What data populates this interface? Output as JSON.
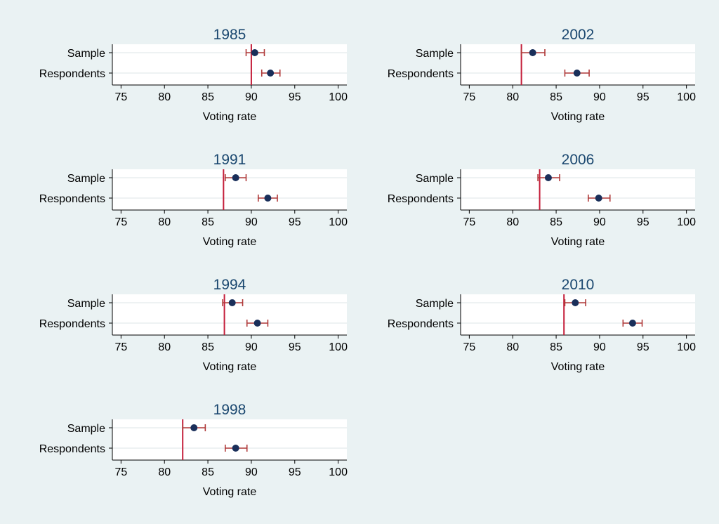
{
  "colors": {
    "background": "#eaf2f3",
    "plot_background": "#ffffff",
    "title_color": "#1a476f",
    "point_color": "#1a2f5a",
    "ci_color": "#b03a3a",
    "reference_line_color": "#c41e3a"
  },
  "chart_data": [
    {
      "type": "scatter",
      "title": "1985",
      "xlabel": "Voting rate",
      "categories": [
        "Sample",
        "Respondents"
      ],
      "xlim": [
        74,
        101
      ],
      "xticks": [
        75,
        80,
        85,
        90,
        95,
        100
      ],
      "reference_line": 90,
      "points": [
        {
          "category": "Sample",
          "value": 90.4,
          "ci": [
            89.4,
            91.5
          ]
        },
        {
          "category": "Respondents",
          "value": 92.2,
          "ci": [
            91.2,
            93.3
          ]
        }
      ]
    },
    {
      "type": "scatter",
      "title": "2002",
      "xlabel": "Voting rate",
      "categories": [
        "Sample",
        "Respondents"
      ],
      "xlim": [
        74,
        101
      ],
      "xticks": [
        75,
        80,
        85,
        90,
        95,
        100
      ],
      "reference_line": 81,
      "points": [
        {
          "category": "Sample",
          "value": 82.3,
          "ci": [
            81.0,
            83.7
          ]
        },
        {
          "category": "Respondents",
          "value": 87.4,
          "ci": [
            86.0,
            88.8
          ]
        }
      ]
    },
    {
      "type": "scatter",
      "title": "1991",
      "xlabel": "Voting rate",
      "categories": [
        "Sample",
        "Respondents"
      ],
      "xlim": [
        74,
        101
      ],
      "xticks": [
        75,
        80,
        85,
        90,
        95,
        100
      ],
      "reference_line": 86.8,
      "points": [
        {
          "category": "Sample",
          "value": 88.2,
          "ci": [
            87.0,
            89.4
          ]
        },
        {
          "category": "Respondents",
          "value": 91.9,
          "ci": [
            90.8,
            93.0
          ]
        }
      ]
    },
    {
      "type": "scatter",
      "title": "2006",
      "xlabel": "Voting rate",
      "categories": [
        "Sample",
        "Respondents"
      ],
      "xlim": [
        74,
        101
      ],
      "xticks": [
        75,
        80,
        85,
        90,
        95,
        100
      ],
      "reference_line": 83.1,
      "points": [
        {
          "category": "Sample",
          "value": 84.1,
          "ci": [
            82.9,
            85.4
          ]
        },
        {
          "category": "Respondents",
          "value": 89.9,
          "ci": [
            88.7,
            91.2
          ]
        }
      ]
    },
    {
      "type": "scatter",
      "title": "1994",
      "xlabel": "Voting rate",
      "categories": [
        "Sample",
        "Respondents"
      ],
      "xlim": [
        74,
        101
      ],
      "xticks": [
        75,
        80,
        85,
        90,
        95,
        100
      ],
      "reference_line": 86.9,
      "points": [
        {
          "category": "Sample",
          "value": 87.8,
          "ci": [
            86.7,
            89.0
          ]
        },
        {
          "category": "Respondents",
          "value": 90.7,
          "ci": [
            89.5,
            91.9
          ]
        }
      ]
    },
    {
      "type": "scatter",
      "title": "2010",
      "xlabel": "Voting rate",
      "categories": [
        "Sample",
        "Respondents"
      ],
      "xlim": [
        74,
        101
      ],
      "xticks": [
        75,
        80,
        85,
        90,
        95,
        100
      ],
      "reference_line": 85.9,
      "points": [
        {
          "category": "Sample",
          "value": 87.2,
          "ci": [
            86.0,
            88.4
          ]
        },
        {
          "category": "Respondents",
          "value": 93.8,
          "ci": [
            92.7,
            94.9
          ]
        }
      ]
    },
    {
      "type": "scatter",
      "title": "1998",
      "xlabel": "Voting rate",
      "categories": [
        "Sample",
        "Respondents"
      ],
      "xlim": [
        74,
        101
      ],
      "xticks": [
        75,
        80,
        85,
        90,
        95,
        100
      ],
      "reference_line": 82.1,
      "points": [
        {
          "category": "Sample",
          "value": 83.4,
          "ci": [
            82.1,
            84.7
          ]
        },
        {
          "category": "Respondents",
          "value": 88.2,
          "ci": [
            87.0,
            89.5
          ]
        }
      ]
    }
  ]
}
